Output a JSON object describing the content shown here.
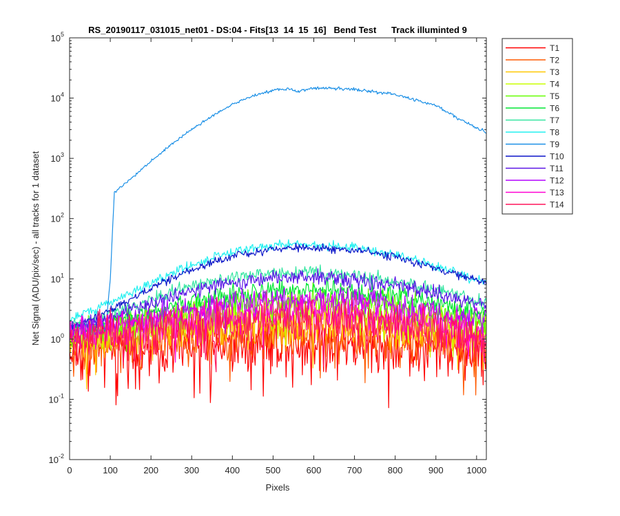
{
  "chart_data": {
    "type": "line",
    "title": "RS_20190117_031015_net01 - DS:04 - Fits[13  14  15  16]   Bend Test      Track illuminted 9",
    "xlabel": "Pixels",
    "ylabel": "Net Signal (ADU/pix/sec) - all tracks for 1 dataset",
    "xlim": [
      0,
      1024
    ],
    "ylim": [
      0.01,
      100000
    ],
    "yscale": "log",
    "grid": false,
    "legend_position": "outside-top-right",
    "x_ticks": [
      0,
      100,
      200,
      300,
      400,
      500,
      600,
      700,
      800,
      900,
      1000
    ],
    "x_tick_labels": [
      "0",
      "100",
      "200",
      "300",
      "400",
      "500",
      "600",
      "700",
      "800",
      "900",
      "1000"
    ],
    "y_ticks": [
      0.01,
      0.1,
      1,
      10,
      100,
      1000,
      10000,
      100000
    ],
    "y_tick_labels": [
      {
        "base": "10",
        "exp": "-2"
      },
      {
        "base": "10",
        "exp": "-1"
      },
      {
        "base": "10",
        "exp": "0"
      },
      {
        "base": "10",
        "exp": "1"
      },
      {
        "base": "10",
        "exp": "2"
      },
      {
        "base": "10",
        "exp": "3"
      },
      {
        "base": "10",
        "exp": "4"
      },
      {
        "base": "10",
        "exp": "5"
      }
    ],
    "series": [
      {
        "name": "T1",
        "color": "#ff0000",
        "x": [
          0,
          100,
          200,
          300,
          400,
          500,
          600,
          700,
          800,
          900,
          1024
        ],
        "y": [
          0.55,
          0.62,
          0.7,
          0.78,
          0.85,
          0.88,
          0.87,
          0.83,
          0.76,
          0.68,
          0.55
        ],
        "noise": 0.3
      },
      {
        "name": "T2",
        "color": "#ff5a00",
        "x": [
          0,
          100,
          200,
          300,
          400,
          500,
          600,
          700,
          800,
          900,
          1024
        ],
        "y": [
          0.75,
          0.85,
          0.95,
          1.05,
          1.12,
          1.17,
          1.17,
          1.12,
          1.04,
          0.94,
          0.75
        ],
        "noise": 0.24
      },
      {
        "name": "T3",
        "color": "#ffc800",
        "x": [
          0,
          100,
          200,
          300,
          400,
          500,
          600,
          700,
          800,
          900,
          1024
        ],
        "y": [
          0.95,
          1.1,
          1.3,
          1.55,
          1.75,
          1.85,
          1.85,
          1.75,
          1.55,
          1.3,
          0.95
        ],
        "noise": 0.2
      },
      {
        "name": "T4",
        "color": "#c8ff00",
        "x": [
          0,
          100,
          200,
          300,
          400,
          500,
          600,
          700,
          800,
          900,
          1024
        ],
        "y": [
          1.1,
          1.35,
          1.75,
          2.2,
          2.6,
          2.85,
          2.85,
          2.65,
          2.25,
          1.8,
          1.3
        ],
        "noise": 0.17
      },
      {
        "name": "T5",
        "color": "#64ff00",
        "x": [
          0,
          100,
          200,
          300,
          400,
          500,
          600,
          700,
          800,
          900,
          1024
        ],
        "y": [
          1.2,
          1.55,
          2.2,
          3.0,
          3.7,
          4.2,
          4.3,
          4.0,
          3.4,
          2.7,
          1.9
        ],
        "noise": 0.14
      },
      {
        "name": "T6",
        "color": "#00e633",
        "x": [
          0,
          100,
          200,
          300,
          400,
          500,
          600,
          700,
          800,
          900,
          1024
        ],
        "y": [
          1.4,
          1.9,
          2.9,
          4.2,
          5.5,
          6.4,
          6.6,
          6.1,
          5.1,
          3.8,
          2.6
        ],
        "noise": 0.1
      },
      {
        "name": "T7",
        "color": "#33e6a0",
        "x": [
          0,
          100,
          200,
          300,
          400,
          500,
          600,
          700,
          800,
          900,
          1024
        ],
        "y": [
          1.6,
          2.5,
          4.5,
          7.5,
          10.5,
          12.5,
          12.8,
          11.5,
          9.0,
          6.5,
          4.0
        ],
        "noise": 0.07
      },
      {
        "name": "T8",
        "color": "#22f0f0",
        "x": [
          0,
          100,
          200,
          300,
          400,
          500,
          600,
          700,
          800,
          900,
          1024
        ],
        "y": [
          2.2,
          4.0,
          8.5,
          17.0,
          28.0,
          36.0,
          37.0,
          33.0,
          25.0,
          16.0,
          8.5
        ],
        "noise": 0.05
      },
      {
        "name": "T9",
        "color": "#1a8fe6",
        "x": [
          0,
          90,
          100,
          110,
          150,
          200,
          250,
          300,
          350,
          400,
          450,
          500,
          540,
          560,
          580,
          620,
          700,
          800,
          900,
          950,
          1024
        ],
        "y": [
          1.6,
          1.8,
          10,
          280,
          450,
          900,
          1700,
          3000,
          5000,
          7800,
          11000,
          13500,
          14200,
          12800,
          14000,
          14700,
          14000,
          11500,
          7500,
          4800,
          2700
        ],
        "noise": 0.015
      },
      {
        "name": "T10",
        "color": "#0a14c8",
        "x": [
          0,
          100,
          200,
          300,
          400,
          500,
          600,
          700,
          800,
          900,
          1024
        ],
        "y": [
          1.5,
          3.0,
          7.0,
          14.0,
          24.0,
          31.0,
          33.0,
          30.0,
          23.0,
          15.0,
          8.5
        ],
        "noise": 0.04
      },
      {
        "name": "T11",
        "color": "#5a14e6",
        "x": [
          0,
          100,
          200,
          300,
          400,
          500,
          600,
          700,
          800,
          900,
          1024
        ],
        "y": [
          1.4,
          2.3,
          4.0,
          6.5,
          9.0,
          10.5,
          10.8,
          10.0,
          8.0,
          5.8,
          3.5
        ],
        "noise": 0.08
      },
      {
        "name": "T12",
        "color": "#b400ff",
        "x": [
          0,
          100,
          200,
          300,
          400,
          500,
          600,
          700,
          800,
          900,
          1024
        ],
        "y": [
          1.3,
          1.7,
          2.4,
          3.2,
          4.0,
          4.6,
          4.6,
          4.2,
          3.5,
          2.7,
          1.9
        ],
        "noise": 0.13
      },
      {
        "name": "T13",
        "color": "#ff00d2",
        "x": [
          0,
          100,
          200,
          300,
          400,
          500,
          600,
          700,
          800,
          900,
          1024
        ],
        "y": [
          1.1,
          1.35,
          1.75,
          2.2,
          2.6,
          2.9,
          2.9,
          2.65,
          2.25,
          1.8,
          1.3
        ],
        "noise": 0.18
      },
      {
        "name": "T14",
        "color": "#ff145a",
        "x": [
          0,
          100,
          200,
          300,
          400,
          500,
          600,
          700,
          800,
          900,
          1024
        ],
        "y": [
          0.95,
          1.15,
          1.4,
          1.7,
          1.95,
          2.1,
          2.1,
          1.95,
          1.7,
          1.4,
          1.0
        ],
        "noise": 0.22
      }
    ]
  }
}
